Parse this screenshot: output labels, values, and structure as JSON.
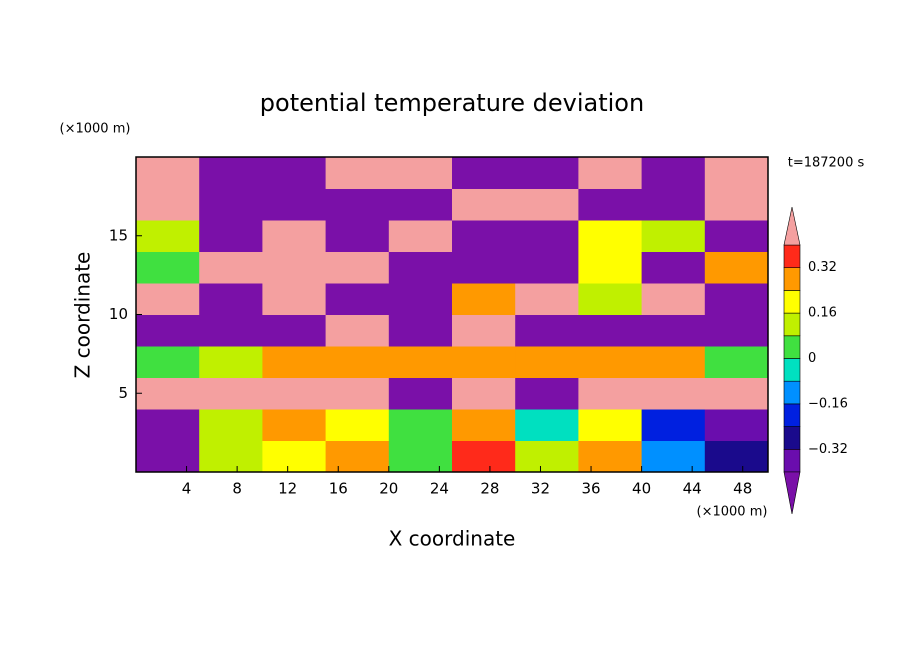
{
  "chart_data": {
    "type": "contour",
    "title": "potential temperature deviation",
    "x_label": "X coordinate",
    "y_label": "Z coordinate",
    "x_unit": "(×1000 m)",
    "y_unit": "(×1000 m)",
    "time_label": "t=187200 s",
    "xlim": [
      0,
      50
    ],
    "ylim": [
      0,
      20
    ],
    "xticks": [
      4,
      8,
      12,
      16,
      20,
      24,
      28,
      32,
      36,
      40,
      44,
      48
    ],
    "yticks": [
      5,
      10,
      15
    ],
    "x": [
      2.5,
      7.5,
      12.5,
      17.5,
      22.5,
      27.5,
      32.5,
      37.5,
      42.5,
      47.5
    ],
    "y": [
      1,
      3,
      5,
      7,
      9,
      11,
      13,
      15,
      17,
      19
    ],
    "z": [
      [
        -0.5,
        0.1,
        0.2,
        0.3,
        0.05,
        0.35,
        0.1,
        0.3,
        -0.1,
        -0.3
      ],
      [
        -0.5,
        0.15,
        0.25,
        0.2,
        0.0,
        0.3,
        -0.05,
        0.2,
        -0.2,
        -0.4
      ],
      [
        0.5,
        0.5,
        0.5,
        0.5,
        -0.5,
        0.5,
        -0.5,
        0.5,
        0.5,
        0.5
      ],
      [
        0.05,
        0.1,
        0.3,
        0.3,
        0.28,
        0.3,
        0.3,
        0.28,
        0.3,
        0.05
      ],
      [
        -0.5,
        -0.5,
        -0.5,
        0.5,
        -0.5,
        0.5,
        -0.5,
        -0.5,
        -0.5,
        -0.5
      ],
      [
        0.5,
        -0.5,
        0.5,
        -0.5,
        -0.5,
        0.3,
        0.5,
        0.1,
        0.5,
        -0.5
      ],
      [
        0.0,
        0.5,
        0.5,
        0.5,
        -0.5,
        -0.5,
        -0.5,
        0.2,
        -0.5,
        0.3
      ],
      [
        0.1,
        -0.5,
        0.5,
        -0.5,
        0.5,
        -0.5,
        -0.5,
        0.2,
        0.1,
        -0.5
      ],
      [
        0.5,
        -0.5,
        -0.5,
        -0.5,
        -0.5,
        0.5,
        0.5,
        -0.5,
        -0.5,
        0.5
      ],
      [
        0.5,
        -0.5,
        -0.5,
        0.5,
        0.5,
        -0.5,
        -0.5,
        0.5,
        -0.5,
        0.5
      ]
    ],
    "levels": [
      -0.4,
      -0.32,
      -0.24,
      -0.16,
      -0.08,
      0,
      0.08,
      0.16,
      0.24,
      0.32,
      0.4
    ],
    "colors": [
      "#6a0dad",
      "#1a0a8c",
      "#0020e0",
      "#0090ff",
      "#00e0c0",
      "#40e040",
      "#c0f000",
      "#ffff00",
      "#ff9900",
      "#ff2a1a"
    ],
    "under_color": "#7a10a8",
    "over_color": "#f4a0a0",
    "colorbar_ticks": [
      0.32,
      0.16,
      0,
      {
        "value": -0.16,
        "label": "−0.16"
      },
      {
        "value": -0.32,
        "label": "−0.32"
      }
    ]
  }
}
